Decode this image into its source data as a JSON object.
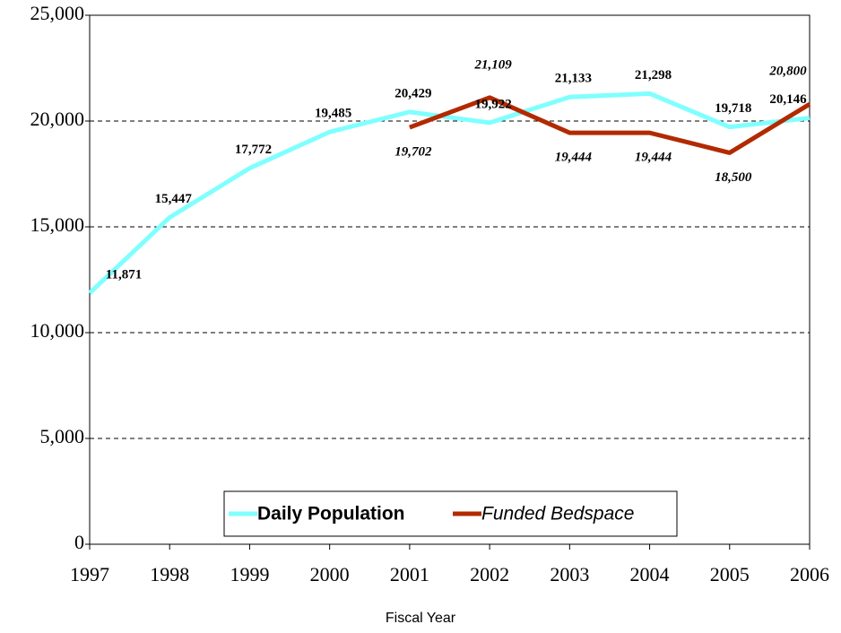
{
  "chart_data": {
    "type": "line",
    "xlabel": "Fiscal Year",
    "x": [
      1997,
      1998,
      1999,
      2000,
      2001,
      2002,
      2003,
      2004,
      2005,
      2006
    ],
    "xlim": [
      1997,
      2006
    ],
    "xticks": [
      1997,
      1998,
      1999,
      2000,
      2001,
      2002,
      2003,
      2004,
      2005,
      2006
    ],
    "ylim": [
      0,
      25000
    ],
    "yticks": [
      0,
      {
        "value": 5000,
        "label": "5,000"
      },
      {
        "value": 10000,
        "label": "10,000"
      },
      {
        "value": 15000,
        "label": "15,000"
      },
      {
        "value": 20000,
        "label": "20,000"
      },
      {
        "value": 25000,
        "label": "25,000"
      }
    ],
    "grid": true,
    "legend": "bottom",
    "series": [
      {
        "name": "Daily Population",
        "color": "#80ffff",
        "values": [
          11871,
          15447,
          17772,
          19485,
          20429,
          19922,
          21133,
          21298,
          19718,
          20146
        ],
        "value_labels": [
          "11,871",
          "15,447",
          "17,772",
          "19,485",
          "20,429",
          "19,922",
          "21,133",
          "21,298",
          "19,718",
          "20,146"
        ]
      },
      {
        "name": "Funded Bedspace",
        "color": "#b22a00",
        "values": [
          null,
          null,
          null,
          null,
          19702,
          21109,
          19444,
          19444,
          18500,
          20800
        ],
        "value_labels": [
          null,
          null,
          null,
          null,
          "19,702",
          "21,109",
          "19,444",
          "19,444",
          "18,500",
          "20,800"
        ]
      }
    ]
  }
}
